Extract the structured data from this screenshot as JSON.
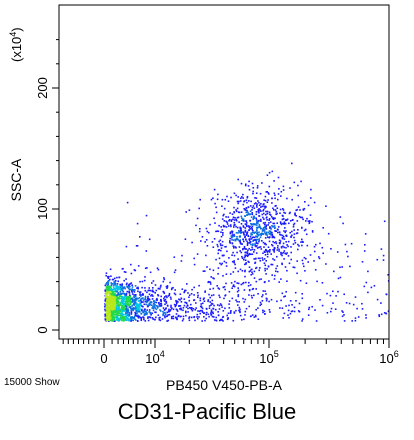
{
  "chart_data": {
    "type": "scatter",
    "subtype": "flow-cytometry-density-plot",
    "title": "",
    "xlabel": "PB450 V450-PB-A",
    "ylabel": "SSC-A",
    "y_multiplier_label_base": "(x10",
    "y_multiplier_label_exp": "4",
    "y_multiplier_label_close": ")",
    "x_scale": "biexponential",
    "x_ticks": [
      {
        "value": 0,
        "base": "0",
        "exp": ""
      },
      {
        "value": 10000,
        "base": "10",
        "exp": "4"
      },
      {
        "value": 100000,
        "base": "10",
        "exp": "5"
      },
      {
        "value": 1000000,
        "base": "10",
        "exp": "6"
      }
    ],
    "y_ticks": [
      {
        "value": 0,
        "label": "0"
      },
      {
        "value": 100,
        "label": "100"
      },
      {
        "value": 200,
        "label": "200"
      }
    ],
    "ylim": [
      -3,
      262
    ],
    "event_count_label": "15000 Show",
    "density_colors": [
      "#1a1aff",
      "#0b6fe0",
      "#00c8e6",
      "#22d94a",
      "#b8e81c"
    ],
    "populations": [
      {
        "name": "",
        "x_center": 3000,
        "y_center": 22,
        "x_spread": 0.75,
        "y_spread": 9,
        "events": 1600
      },
      {
        "name": "",
        "x_center": 80000,
        "y_center": 82,
        "x_spread": 0.22,
        "y_spread": 17,
        "events": 900
      }
    ]
  },
  "caption": "CD31-Pacific Blue"
}
